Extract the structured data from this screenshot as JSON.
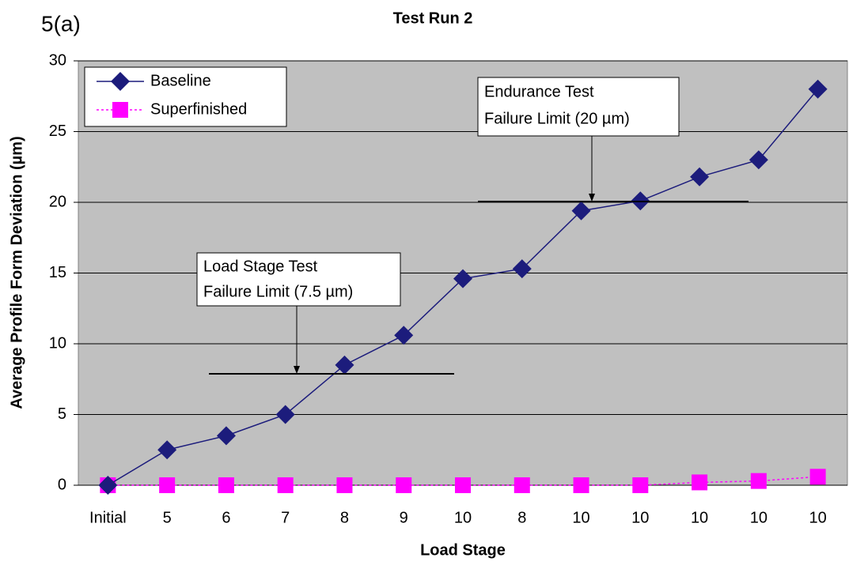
{
  "panel_label": "5(a)",
  "chart_data": {
    "type": "line",
    "title": "Test Run 2",
    "xlabel": "Load Stage",
    "ylabel": "Average Profile Form Deviation (µm)",
    "categories": [
      "Initial",
      "5",
      "6",
      "7",
      "8",
      "9",
      "10",
      "8",
      "10",
      "10",
      "10",
      "10",
      "10"
    ],
    "series": [
      {
        "name": "Baseline",
        "color": "#1c1c7c",
        "marker": "diamond",
        "values": [
          0,
          2.5,
          3.5,
          5.0,
          8.5,
          10.6,
          14.6,
          15.3,
          19.4,
          20.1,
          21.8,
          23.0,
          28.0
        ]
      },
      {
        "name": "Superfinished",
        "color": "#ff00ff",
        "marker": "square",
        "dashed": true,
        "values": [
          0,
          0,
          0,
          0,
          0,
          0,
          0,
          0,
          0,
          0,
          0.2,
          0.3,
          0.6
        ]
      }
    ],
    "ylim": [
      0,
      30
    ],
    "yticks": [
      0,
      5,
      10,
      15,
      20,
      25,
      30
    ],
    "grid": true,
    "legend": "upper left",
    "annotations": [
      {
        "lines": [
          "Load Stage Test",
          "Failure Limit (7.5 µm)"
        ]
      },
      {
        "lines": [
          "Endurance Test",
          "Failure Limit (20 µm)"
        ]
      }
    ]
  }
}
